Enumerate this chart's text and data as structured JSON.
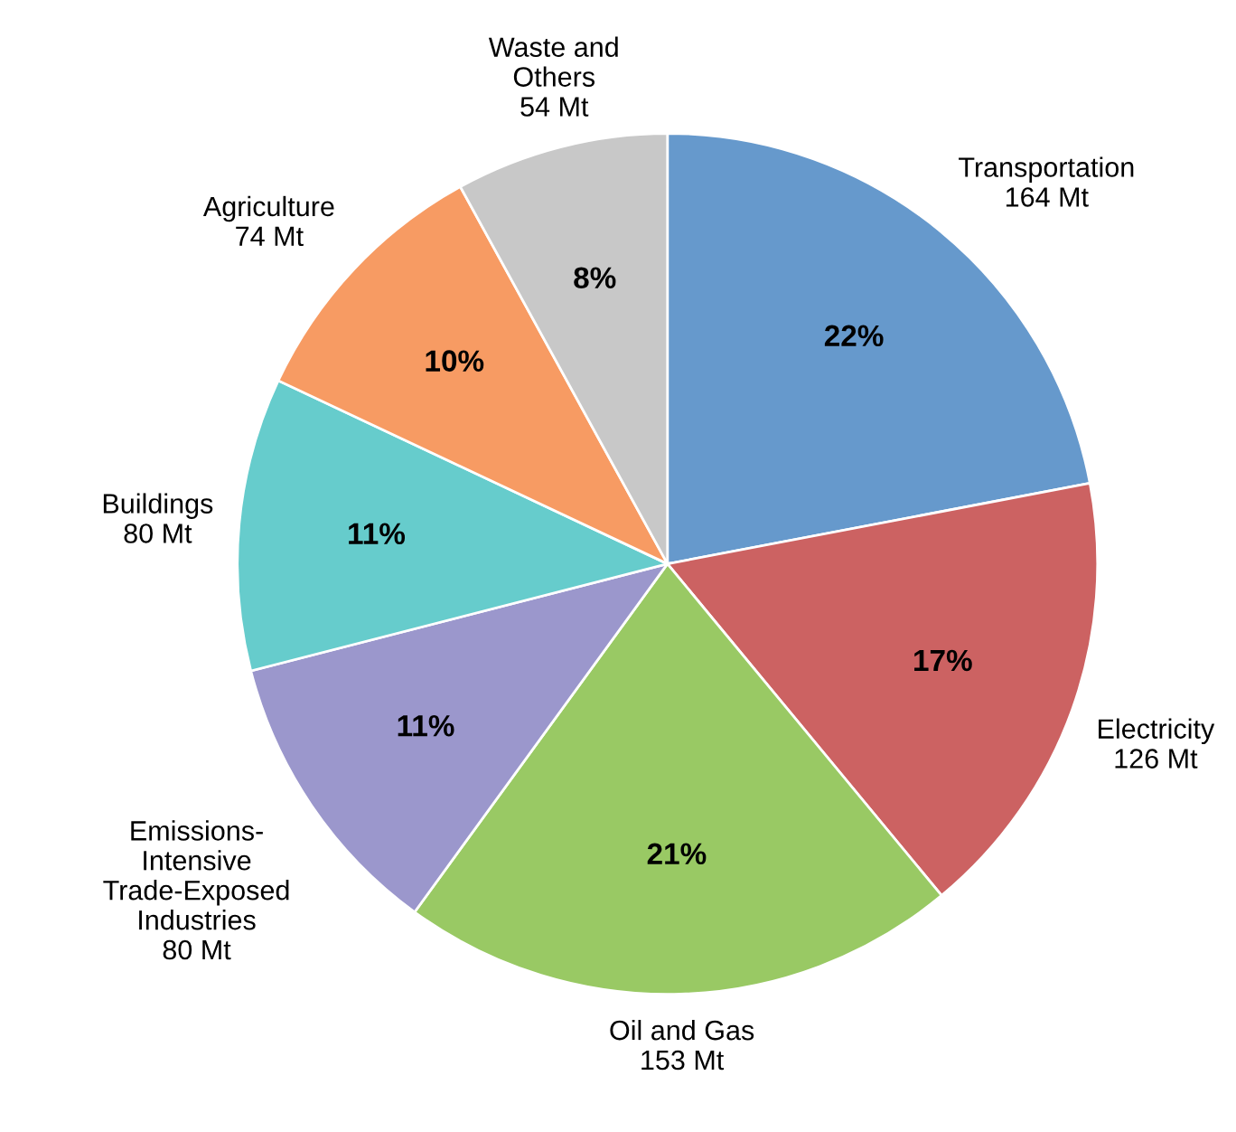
{
  "chart_data": {
    "type": "pie",
    "categories": [
      "Transportation\n164 Mt",
      "Electricity\n126 Mt",
      "Oil and Gas\n153 Mt",
      "Emissions-\nIntensive\nTrade-Exposed\nIndustries\n80 Mt",
      "Buildings\n80 Mt",
      "Agriculture\n74 Mt",
      "Waste and\nOthers\n54 Mt"
    ],
    "values": [
      22,
      17,
      21,
      11,
      11,
      10,
      8
    ],
    "colors": [
      "#6699cc",
      "#cc6262",
      "#99c964",
      "#9b97cc",
      "#66cccc",
      "#f79b63",
      "#c8c8c8"
    ],
    "value_labels": [
      "22%",
      "17%",
      "21%",
      "11%",
      "11%",
      "10%",
      "8%"
    ],
    "legend": false
  }
}
